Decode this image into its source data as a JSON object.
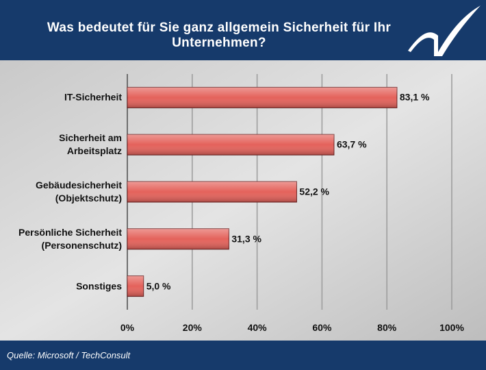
{
  "chart_data": {
    "type": "barh",
    "title": "Was bedeutet für Sie ganz allgemein Sicherheit für Ihr Unternehmen?",
    "source": "Quelle: Microsoft / TechConsult",
    "categories": [
      "IT-Sicherheit",
      "Sicherheit am Arbeitsplatz",
      "Gebäudesicherheit (Objektschutz)",
      "Persönliche Sicherheit (Personenschutz)",
      "Sonstiges"
    ],
    "values": [
      83.1,
      63.7,
      52.2,
      31.3,
      5.0
    ],
    "value_labels": [
      "83,1 %",
      "63,7 %",
      "52,2 %",
      "31,3 %",
      "5,0 %"
    ],
    "color": "#e4625b",
    "xlim": [
      0,
      100
    ],
    "xticks": [
      {
        "value": 0,
        "label": "0%"
      },
      {
        "value": 20,
        "label": "20%"
      },
      {
        "value": 40,
        "label": "40%"
      },
      {
        "value": 60,
        "label": "60%"
      },
      {
        "value": 80,
        "label": "80%"
      },
      {
        "value": 100,
        "label": "100%"
      }
    ],
    "grid": true
  }
}
